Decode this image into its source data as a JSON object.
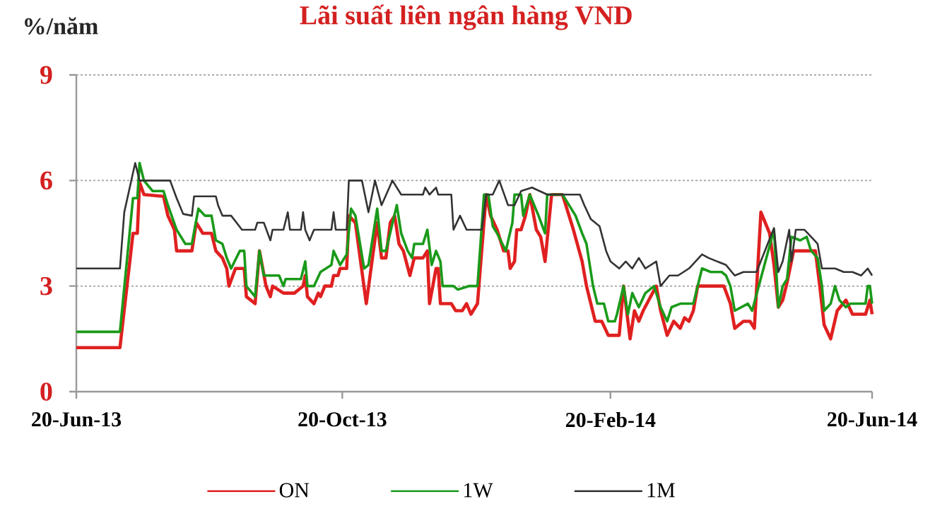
{
  "chart_data": {
    "type": "line",
    "title": "Lãi suất liên ngân hàng VND",
    "ylabel": "%/năm",
    "xlim": [
      "2013-06-20",
      "2014-06-20"
    ],
    "ylim": [
      0,
      9
    ],
    "xticks": [
      {
        "value": "2013-06-20",
        "label": "20-Jun-13"
      },
      {
        "value": "2013-10-20",
        "label": "20-Oct-13"
      },
      {
        "value": "2014-02-20",
        "label": "20-Feb-14"
      },
      {
        "value": "2014-06-20",
        "label": "20-Jun-14"
      }
    ],
    "yticks": [
      0,
      3,
      6,
      9
    ],
    "grid": "y",
    "legend": "bottom",
    "line_style": "solid",
    "marker": "none",
    "series": [
      {
        "name": "ON",
        "color": "#e02020",
        "x": [
          "2013-06-20",
          "2013-07-10",
          "2013-07-16",
          "2013-07-18",
          "2013-07-19",
          "2013-07-21",
          "2013-07-30",
          "2013-08-01",
          "2013-08-04",
          "2013-08-05",
          "2013-08-12",
          "2013-08-14",
          "2013-08-17",
          "2013-08-21",
          "2013-08-23",
          "2013-08-26",
          "2013-08-28",
          "2013-08-29",
          "2013-09-01",
          "2013-09-05",
          "2013-09-06",
          "2013-09-10",
          "2013-09-12",
          "2013-09-15",
          "2013-09-17",
          "2013-09-18",
          "2013-09-23",
          "2013-09-28",
          "2013-10-02",
          "2013-10-03",
          "2013-10-04",
          "2013-10-07",
          "2013-10-09",
          "2013-10-10",
          "2013-10-12",
          "2013-10-15",
          "2013-10-16",
          "2013-10-18",
          "2013-10-19",
          "2013-10-22",
          "2013-10-23",
          "2013-10-26",
          "2013-10-31",
          "2013-11-05",
          "2013-11-07",
          "2013-11-09",
          "2013-11-11",
          "2013-11-13",
          "2013-11-15",
          "2013-11-17",
          "2013-11-20",
          "2013-11-22",
          "2013-11-26",
          "2013-11-28",
          "2013-11-29",
          "2013-12-02",
          "2013-12-03",
          "2013-12-04",
          "2013-12-09",
          "2013-12-11",
          "2013-12-14",
          "2013-12-16",
          "2013-12-18",
          "2013-12-21",
          "2013-12-25",
          "2013-12-27",
          "2013-12-30",
          "2014-01-02",
          "2014-01-04",
          "2014-01-05",
          "2014-01-07",
          "2014-01-08",
          "2014-01-10",
          "2014-01-12",
          "2014-01-14",
          "2014-01-17",
          "2014-01-19",
          "2014-01-21",
          "2014-01-24",
          "2014-01-29",
          "2014-02-03",
          "2014-02-07",
          "2014-02-09",
          "2014-02-13",
          "2014-02-16",
          "2014-02-19",
          "2014-02-24",
          "2014-02-26",
          "2014-03-01",
          "2014-03-03",
          "2014-03-05",
          "2014-03-07",
          "2014-03-13",
          "2014-03-15",
          "2014-03-18",
          "2014-03-21",
          "2014-03-24",
          "2014-03-26",
          "2014-03-28",
          "2014-03-30",
          "2014-04-01",
          "2014-04-03",
          "2014-04-13",
          "2014-04-16",
          "2014-04-18",
          "2014-04-22",
          "2014-04-25",
          "2014-04-27",
          "2014-04-30",
          "2014-05-04",
          "2014-05-06",
          "2014-05-08",
          "2014-05-10",
          "2014-05-12",
          "2014-05-15",
          "2014-05-20",
          "2014-05-25",
          "2014-05-27",
          "2014-05-29",
          "2014-06-01",
          "2014-06-04",
          "2014-06-08",
          "2014-06-11",
          "2014-06-17",
          "2014-06-19",
          "2014-06-20"
        ],
        "values": [
          1.25,
          1.25,
          4.5,
          4.5,
          5.95,
          5.6,
          5.55,
          5.0,
          4.6,
          4.0,
          4.0,
          4.8,
          4.5,
          4.5,
          4.0,
          3.8,
          3.5,
          3.0,
          3.5,
          3.5,
          2.7,
          2.5,
          4.0,
          3.0,
          2.7,
          3.0,
          2.8,
          2.8,
          3.0,
          3.3,
          2.7,
          2.5,
          2.8,
          2.7,
          3.0,
          3.0,
          3.3,
          3.3,
          3.5,
          3.5,
          5.0,
          4.8,
          2.5,
          4.8,
          3.8,
          3.8,
          4.8,
          5.0,
          4.2,
          4.0,
          3.3,
          3.8,
          3.8,
          4.0,
          2.5,
          3.5,
          3.5,
          2.5,
          2.5,
          2.3,
          2.3,
          2.5,
          2.2,
          2.5,
          5.6,
          5.0,
          4.6,
          4.0,
          4.0,
          3.5,
          3.7,
          4.6,
          4.6,
          5.0,
          5.6,
          4.6,
          4.4,
          3.7,
          5.6,
          5.6,
          4.6,
          3.7,
          3.0,
          2.0,
          2.0,
          1.6,
          1.6,
          3.0,
          1.5,
          2.3,
          2.0,
          2.3,
          3.0,
          2.3,
          1.6,
          2.0,
          1.8,
          2.1,
          2.0,
          2.3,
          3.0,
          3.0,
          3.0,
          2.5,
          1.8,
          2.0,
          2.0,
          1.8,
          5.1,
          4.5,
          3.6,
          2.4,
          2.6,
          3.1,
          4.0,
          4.0,
          4.0,
          3.0,
          1.9,
          1.5,
          2.3,
          2.6,
          2.2,
          2.2,
          2.6,
          2.2
        ]
      },
      {
        "name": "1W",
        "color": "#1a9a1a",
        "x": [
          "2013-06-20",
          "2013-07-10",
          "2013-07-16",
          "2013-07-18",
          "2013-07-19",
          "2013-07-21",
          "2013-07-25",
          "2013-07-30",
          "2013-08-01",
          "2013-08-05",
          "2013-08-09",
          "2013-08-12",
          "2013-08-15",
          "2013-08-18",
          "2013-08-21",
          "2013-08-23",
          "2013-08-26",
          "2013-08-28",
          "2013-08-30",
          "2013-09-03",
          "2013-09-05",
          "2013-09-06",
          "2013-09-10",
          "2013-09-12",
          "2013-09-14",
          "2013-09-21",
          "2013-09-23",
          "2013-09-24",
          "2013-10-01",
          "2013-10-03",
          "2013-10-04",
          "2013-10-07",
          "2013-10-10",
          "2013-10-15",
          "2013-10-16",
          "2013-10-19",
          "2013-10-22",
          "2013-10-24",
          "2013-10-26",
          "2013-10-30",
          "2013-11-01",
          "2013-11-05",
          "2013-11-07",
          "2013-11-09",
          "2013-11-14",
          "2013-11-16",
          "2013-11-19",
          "2013-11-21",
          "2013-11-22",
          "2013-11-26",
          "2013-11-28",
          "2013-11-30",
          "2013-12-02",
          "2013-12-04",
          "2013-12-05",
          "2013-12-10",
          "2013-12-12",
          "2013-12-17",
          "2013-12-21",
          "2013-12-24",
          "2013-12-26",
          "2013-12-28",
          "2013-12-30",
          "2014-01-03",
          "2014-01-06",
          "2014-01-07",
          "2014-01-10",
          "2014-01-11",
          "2014-01-14",
          "2014-01-18",
          "2014-01-21",
          "2014-01-22",
          "2014-01-29",
          "2014-02-04",
          "2014-02-07",
          "2014-02-09",
          "2014-02-12",
          "2014-02-14",
          "2014-02-17",
          "2014-02-19",
          "2014-02-22",
          "2014-02-23",
          "2014-02-26",
          "2014-02-28",
          "2014-03-02",
          "2014-03-05",
          "2014-03-08",
          "2014-03-12",
          "2014-03-15",
          "2014-03-18",
          "2014-03-20",
          "2014-03-24",
          "2014-03-30",
          "2014-04-01",
          "2014-04-03",
          "2014-04-07",
          "2014-04-12",
          "2014-04-14",
          "2014-04-16",
          "2014-04-18",
          "2014-04-24",
          "2014-04-26",
          "2014-04-29",
          "2014-05-06",
          "2014-05-08",
          "2014-05-10",
          "2014-05-12",
          "2014-05-14",
          "2014-05-18",
          "2014-05-21",
          "2014-05-23",
          "2014-05-26",
          "2014-05-28",
          "2014-05-29",
          "2014-06-01",
          "2014-06-03",
          "2014-06-05",
          "2014-06-08",
          "2014-06-10",
          "2014-06-17",
          "2014-06-18",
          "2014-06-19",
          "2014-06-20"
        ],
        "values": [
          1.7,
          1.7,
          5.5,
          5.5,
          6.5,
          6.0,
          5.7,
          5.7,
          5.3,
          4.6,
          4.2,
          4.2,
          5.2,
          5.0,
          5.0,
          4.3,
          4.2,
          3.8,
          3.5,
          4.0,
          4.0,
          3.0,
          2.7,
          4.0,
          3.3,
          3.3,
          3.0,
          3.2,
          3.2,
          3.7,
          3.0,
          3.0,
          3.4,
          3.6,
          4.0,
          3.6,
          3.9,
          5.2,
          5.0,
          3.5,
          3.6,
          5.2,
          4.0,
          4.0,
          5.3,
          4.5,
          4.0,
          3.8,
          4.2,
          4.2,
          4.6,
          3.6,
          4.0,
          3.7,
          3.0,
          3.0,
          2.9,
          3.0,
          3.0,
          5.6,
          5.6,
          4.7,
          4.5,
          4.0,
          4.8,
          5.6,
          5.6,
          5.0,
          5.6,
          5.0,
          4.5,
          5.6,
          5.6,
          5.0,
          4.5,
          4.2,
          3.0,
          2.5,
          2.5,
          2.0,
          2.0,
          2.2,
          3.0,
          2.2,
          2.8,
          2.4,
          2.8,
          3.0,
          2.4,
          2.0,
          2.4,
          2.5,
          2.5,
          3.0,
          3.5,
          3.4,
          3.4,
          3.3,
          3.0,
          2.3,
          2.5,
          2.3,
          3.0,
          4.6,
          2.4,
          3.0,
          3.2,
          4.4,
          4.3,
          4.4,
          4.0,
          3.8,
          3.0,
          2.3,
          2.5,
          3.0,
          2.6,
          2.4,
          2.5,
          2.5,
          3.0,
          3.0,
          2.5
        ]
      },
      {
        "name": "1M",
        "color": "#333333",
        "x": [
          "2013-06-20",
          "2013-07-10",
          "2013-07-12",
          "2013-07-17",
          "2013-07-19",
          "2013-08-02",
          "2013-08-05",
          "2013-08-08",
          "2013-08-12",
          "2013-08-13",
          "2013-08-23",
          "2013-08-24",
          "2013-08-26",
          "2013-08-30",
          "2013-09-04",
          "2013-09-10",
          "2013-09-11",
          "2013-09-14",
          "2013-09-17",
          "2013-09-18",
          "2013-09-23",
          "2013-09-25",
          "2013-09-26",
          "2013-10-01",
          "2013-10-02",
          "2013-10-03",
          "2013-10-05",
          "2013-10-07",
          "2013-10-15",
          "2013-10-16",
          "2013-10-17",
          "2013-10-22",
          "2013-10-23",
          "2013-10-29",
          "2013-11-01",
          "2013-11-04",
          "2013-11-07",
          "2013-11-12",
          "2013-11-16",
          "2013-11-26",
          "2013-11-27",
          "2013-11-29",
          "2013-12-02",
          "2013-12-03",
          "2013-12-09",
          "2013-12-10",
          "2013-12-13",
          "2013-12-16",
          "2013-12-18",
          "2013-12-23",
          "2013-12-25",
          "2013-12-28",
          "2013-12-31",
          "2014-01-04",
          "2014-01-07",
          "2014-01-10",
          "2014-01-15",
          "2014-01-22",
          "2014-02-06",
          "2014-02-08",
          "2014-02-11",
          "2014-02-15",
          "2014-02-18",
          "2014-02-20",
          "2014-02-24",
          "2014-02-27",
          "2014-03-02",
          "2014-03-05",
          "2014-03-08",
          "2014-03-13",
          "2014-03-15",
          "2014-03-19",
          "2014-03-23",
          "2014-03-28",
          "2014-04-03",
          "2014-04-06",
          "2014-04-14",
          "2014-04-18",
          "2014-04-22",
          "2014-04-28",
          "2014-05-06",
          "2014-05-08",
          "2014-05-10",
          "2014-05-13",
          "2014-05-14",
          "2014-05-16",
          "2014-05-20",
          "2014-05-23",
          "2014-05-26",
          "2014-05-28",
          "2014-06-03",
          "2014-06-07",
          "2014-06-11",
          "2014-06-15",
          "2014-06-18",
          "2014-06-20"
        ],
        "values": [
          3.5,
          3.5,
          5.1,
          6.5,
          6.0,
          6.0,
          5.5,
          5.05,
          5.0,
          5.55,
          5.55,
          5.3,
          5.0,
          5.0,
          4.6,
          4.6,
          4.8,
          4.8,
          4.3,
          4.6,
          4.6,
          5.1,
          4.6,
          4.6,
          5.1,
          4.6,
          4.3,
          4.6,
          4.6,
          5.1,
          4.6,
          4.6,
          6.0,
          6.0,
          5.1,
          6.0,
          5.3,
          6.0,
          5.6,
          5.6,
          5.8,
          5.6,
          5.8,
          5.6,
          5.6,
          4.6,
          5.0,
          4.6,
          4.6,
          4.6,
          5.6,
          5.6,
          6.0,
          5.3,
          5.3,
          5.7,
          5.8,
          5.6,
          5.6,
          5.3,
          4.9,
          4.7,
          4.0,
          3.7,
          3.5,
          3.7,
          3.5,
          3.8,
          3.5,
          3.7,
          3.0,
          3.3,
          3.3,
          3.5,
          3.9,
          3.8,
          3.6,
          3.3,
          3.4,
          3.4,
          4.65,
          3.4,
          3.7,
          4.6,
          3.7,
          4.6,
          4.6,
          4.4,
          4.2,
          3.5,
          3.5,
          3.4,
          3.4,
          3.3,
          3.5,
          3.3
        ]
      }
    ]
  }
}
